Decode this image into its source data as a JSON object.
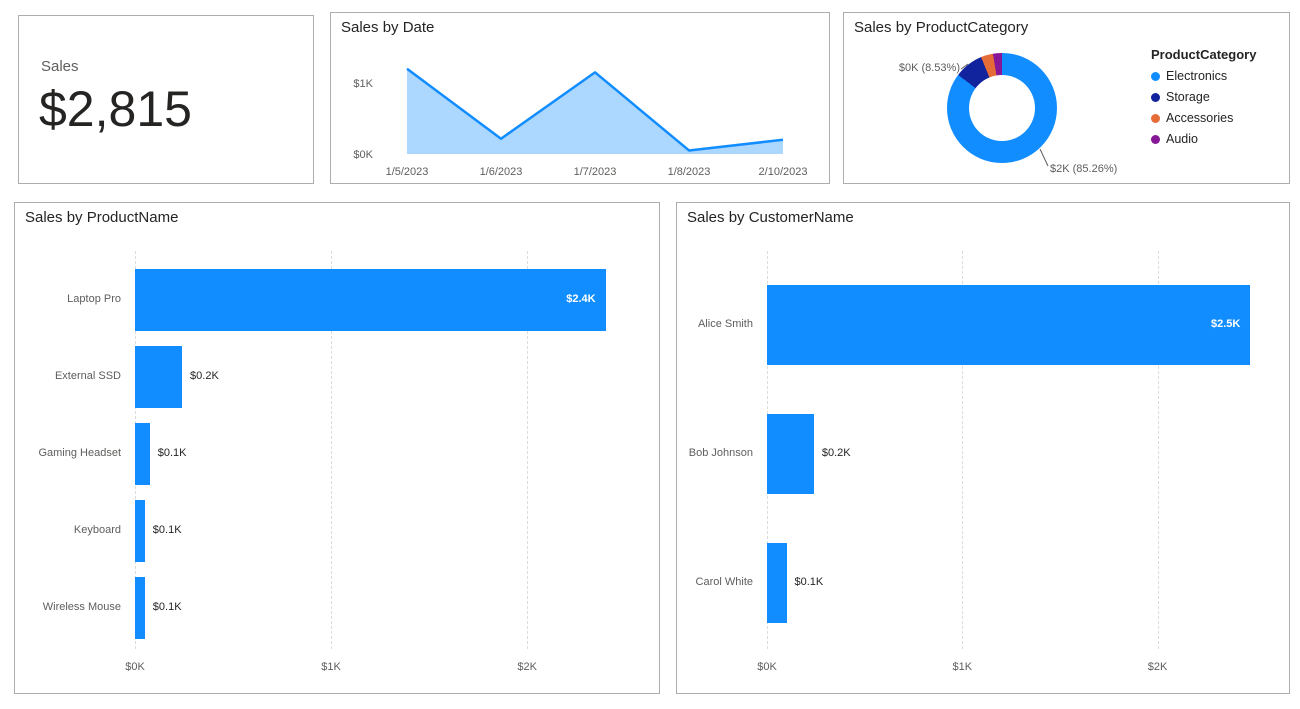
{
  "colors": {
    "primary": "#118DFF",
    "area_fill_rgba": "rgba(17,141,255,0.35)",
    "text_dark": "#252423",
    "text_gray": "#605E5C",
    "card_border": "#ADADAD"
  },
  "kpi": {
    "label": "Sales",
    "value": "$2,815"
  },
  "chart_data": [
    {
      "id": "sales-by-date",
      "type": "area",
      "title": "Sales by Date",
      "x": [
        "1/5/2023",
        "1/6/2023",
        "1/7/2023",
        "1/8/2023",
        "2/10/2023"
      ],
      "values": [
        1200,
        215,
        1150,
        50,
        200
      ],
      "yticks": [
        {
          "value": 0,
          "label": "$0K"
        },
        {
          "value": 1000,
          "label": "$1K"
        }
      ],
      "ylim": [
        0,
        1300
      ],
      "line_color": "#118DFF",
      "fill_color": "rgba(17,141,255,0.35)"
    },
    {
      "id": "sales-by-product-category",
      "type": "donut",
      "title": "Sales by ProductCategory",
      "legend_title": "ProductCategory",
      "slices": [
        {
          "label": "Electronics",
          "pct": 85.26,
          "color": "#118DFF"
        },
        {
          "label": "Storage",
          "pct": 8.53,
          "color": "#12239E"
        },
        {
          "label": "Accessories",
          "pct": 3.55,
          "color": "#E66C37"
        },
        {
          "label": "Audio",
          "pct": 2.66,
          "color": "#881798"
        }
      ],
      "callouts": [
        {
          "text": "$0K (8.53%)",
          "target": "Storage"
        },
        {
          "text": "$2K (85.26%)",
          "target": "Electronics"
        }
      ]
    },
    {
      "id": "sales-by-product-name",
      "type": "bar",
      "title": "Sales by ProductName",
      "categories": [
        "Laptop Pro",
        "External SSD",
        "Gaming Headset",
        "Keyboard",
        "Wireless Mouse"
      ],
      "values": [
        2400,
        240,
        75,
        50,
        50
      ],
      "labels": [
        "$2.4K",
        "$0.2K",
        "$0.1K",
        "$0.1K",
        "$0.1K"
      ],
      "xticks": [
        {
          "v": 0,
          "label": "$0K"
        },
        {
          "v": 1000,
          "label": "$1K"
        },
        {
          "v": 2000,
          "label": "$2K"
        }
      ],
      "xlim": [
        0,
        2550
      ],
      "bar_color": "#118DFF"
    },
    {
      "id": "sales-by-customer-name",
      "type": "bar",
      "title": "Sales by CustomerName",
      "categories": [
        "Alice Smith",
        "Bob Johnson",
        "Carol White"
      ],
      "values": [
        2475,
        240,
        100
      ],
      "labels": [
        "$2.5K",
        "$0.2K",
        "$0.1K"
      ],
      "xticks": [
        {
          "v": 0,
          "label": "$0K"
        },
        {
          "v": 1000,
          "label": "$1K"
        },
        {
          "v": 2000,
          "label": "$2K"
        }
      ],
      "xlim": [
        0,
        2550
      ],
      "bar_color": "#118DFF"
    }
  ]
}
